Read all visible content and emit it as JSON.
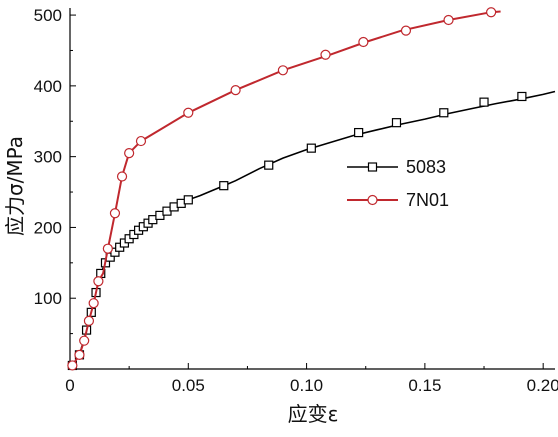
{
  "chart_data": {
    "type": "line",
    "xlabel": "应变ε",
    "ylabel": "应力σ/MPa",
    "xlim": [
      0,
      0.205
    ],
    "ylim": [
      0,
      510
    ],
    "x_ticks": [
      0,
      0.05,
      0.1,
      0.15,
      0.2
    ],
    "x_tick_labels": [
      "0",
      "0.05",
      "0.10",
      "0.15",
      "0.20"
    ],
    "y_ticks": [
      100,
      200,
      300,
      400,
      500
    ],
    "y_tick_labels": [
      "100",
      "200",
      "300",
      "400",
      "500"
    ],
    "legend_position": "right-middle",
    "series": [
      {
        "name": "5083",
        "color": "#000000",
        "marker": "square",
        "x": [
          0.001,
          0.004,
          0.007,
          0.009,
          0.011,
          0.013,
          0.015,
          0.017,
          0.019,
          0.021,
          0.023,
          0.025,
          0.027,
          0.029,
          0.031,
          0.033,
          0.035,
          0.038,
          0.041,
          0.044,
          0.047,
          0.05,
          0.055,
          0.06,
          0.065,
          0.07,
          0.08,
          0.09,
          0.1,
          0.11,
          0.12,
          0.13,
          0.14,
          0.15,
          0.16,
          0.17,
          0.18,
          0.19,
          0.2,
          0.205
        ],
        "y": [
          5,
          20,
          55,
          80,
          108,
          135,
          150,
          158,
          165,
          172,
          178,
          184,
          190,
          196,
          201,
          206,
          211,
          217,
          223,
          229,
          234,
          239,
          245,
          252,
          259,
          266,
          283,
          298,
          310,
          320,
          330,
          338,
          346,
          353,
          361,
          368,
          375,
          381,
          388,
          392
        ],
        "marker_x": [
          0.001,
          0.004,
          0.007,
          0.009,
          0.011,
          0.013,
          0.015,
          0.017,
          0.019,
          0.021,
          0.023,
          0.025,
          0.027,
          0.029,
          0.031,
          0.033,
          0.035,
          0.038,
          0.041,
          0.044,
          0.047,
          0.05,
          0.065,
          0.084,
          0.102,
          0.122,
          0.138,
          0.158,
          0.175,
          0.191
        ],
        "marker_y": [
          5,
          20,
          55,
          80,
          108,
          135,
          150,
          158,
          165,
          172,
          178,
          184,
          190,
          196,
          201,
          206,
          211,
          217,
          223,
          229,
          234,
          239,
          259,
          288,
          312,
          334,
          348,
          362,
          377,
          385
        ]
      },
      {
        "name": "7N01",
        "color": "#c0282e",
        "marker": "circle",
        "x": [
          0.001,
          0.004,
          0.006,
          0.008,
          0.01,
          0.012,
          0.014,
          0.016,
          0.019,
          0.022,
          0.025,
          0.03,
          0.05,
          0.07,
          0.09,
          0.11,
          0.125,
          0.14,
          0.16,
          0.178,
          0.182
        ],
        "y": [
          5,
          20,
          40,
          68,
          93,
          124,
          135,
          170,
          220,
          272,
          305,
          322,
          362,
          394,
          422,
          444,
          462,
          478,
          493,
          504,
          505
        ],
        "marker_x": [
          0.001,
          0.004,
          0.006,
          0.008,
          0.01,
          0.012,
          0.016,
          0.019,
          0.022,
          0.025,
          0.03,
          0.05,
          0.07,
          0.09,
          0.108,
          0.124,
          0.142,
          0.16,
          0.178
        ],
        "marker_y": [
          5,
          20,
          40,
          68,
          93,
          124,
          170,
          220,
          272,
          305,
          322,
          362,
          394,
          422,
          444,
          462,
          478,
          493,
          504
        ]
      }
    ]
  }
}
